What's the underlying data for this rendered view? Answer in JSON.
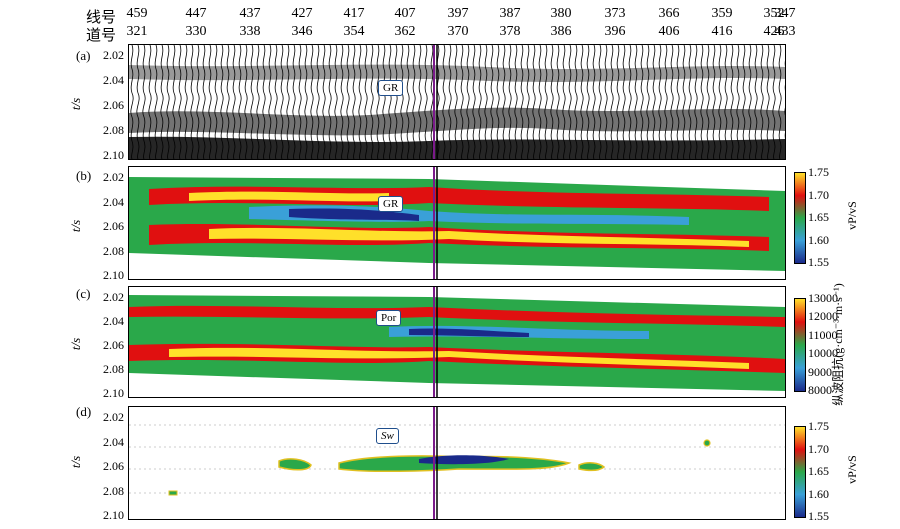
{
  "header": {
    "line_label": "线号",
    "trace_label": "道号",
    "line_numbers": [
      "459",
      "447",
      "437",
      "427",
      "417",
      "407",
      "397",
      "387",
      "380",
      "373",
      "366",
      "359",
      "352",
      "347"
    ],
    "trace_numbers": [
      "321",
      "330",
      "338",
      "346",
      "354",
      "362",
      "370",
      "378",
      "386",
      "396",
      "406",
      "416",
      "426",
      "433"
    ]
  },
  "panels": [
    {
      "label": "(a)",
      "axis_title": "t/s",
      "callout": "GR"
    },
    {
      "label": "(b)",
      "axis_title": "t/s",
      "callout": "GR"
    },
    {
      "label": "(c)",
      "axis_title": "t/s",
      "callout": "Por"
    },
    {
      "label": "(d)",
      "axis_title": "t/s",
      "callout": "Sw"
    }
  ],
  "time_ticks": [
    "2.02",
    "2.04",
    "2.06",
    "2.08",
    "2.10"
  ],
  "colorbars": [
    {
      "title": "vP/vS",
      "ticks": [
        "1.75",
        "1.70",
        "1.65",
        "1.60",
        "1.55"
      ]
    },
    {
      "title": "纵波阻抗(g·cm⁻³·m·s⁻¹)",
      "ticks": [
        "13000",
        "12000",
        "11000",
        "10000",
        "9000",
        "8000"
      ]
    },
    {
      "title": "vP/vS",
      "ticks": [
        "1.75",
        "1.70",
        "1.65",
        "1.60",
        "1.55"
      ]
    }
  ],
  "colors": {
    "low": "#1a2a8a",
    "mid_low": "#3aa0d8",
    "mid": "#2aa84a",
    "mid_high": "#e01010",
    "high": "#ffe02a",
    "well": "#7a1a8a"
  }
}
